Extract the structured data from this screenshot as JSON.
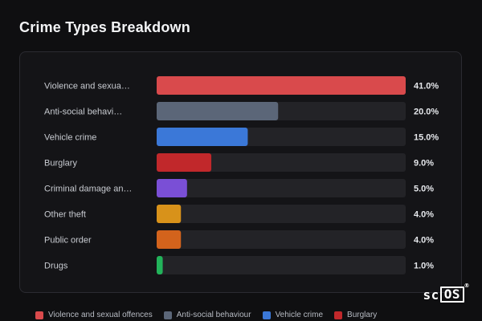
{
  "page_title": "Crime Types Breakdown",
  "chart_data": {
    "type": "bar",
    "orientation": "horizontal",
    "categories": [
      "Violence and sexua…",
      "Anti-social behavi…",
      "Vehicle crime",
      "Burglary",
      "Criminal damage an…",
      "Other theft",
      "Public order",
      "Drugs"
    ],
    "values": [
      41.0,
      20.0,
      15.0,
      9.0,
      5.0,
      4.0,
      4.0,
      1.0
    ],
    "value_labels": [
      "41.0%",
      "20.0%",
      "15.0%",
      "9.0%",
      "5.0%",
      "4.0%",
      "4.0%",
      "1.0%"
    ],
    "colors": [
      "#d94a4c",
      "#5b6678",
      "#3b78d8",
      "#c1282b",
      "#7a4fd6",
      "#d8921a",
      "#d3631c",
      "#22b35a"
    ],
    "track_color": "#232327",
    "xlim": [
      0,
      41
    ],
    "grid": false
  },
  "legend": [
    {
      "label": "Violence and sexual offences",
      "color": "#d94a4c"
    },
    {
      "label": "Anti-social behaviour",
      "color": "#5b6678"
    },
    {
      "label": "Vehicle crime",
      "color": "#3b78d8"
    },
    {
      "label": "Burglary",
      "color": "#c1282b"
    }
  ],
  "brand": {
    "prefix": "sc",
    "boxed": "OS",
    "mark": "®"
  }
}
